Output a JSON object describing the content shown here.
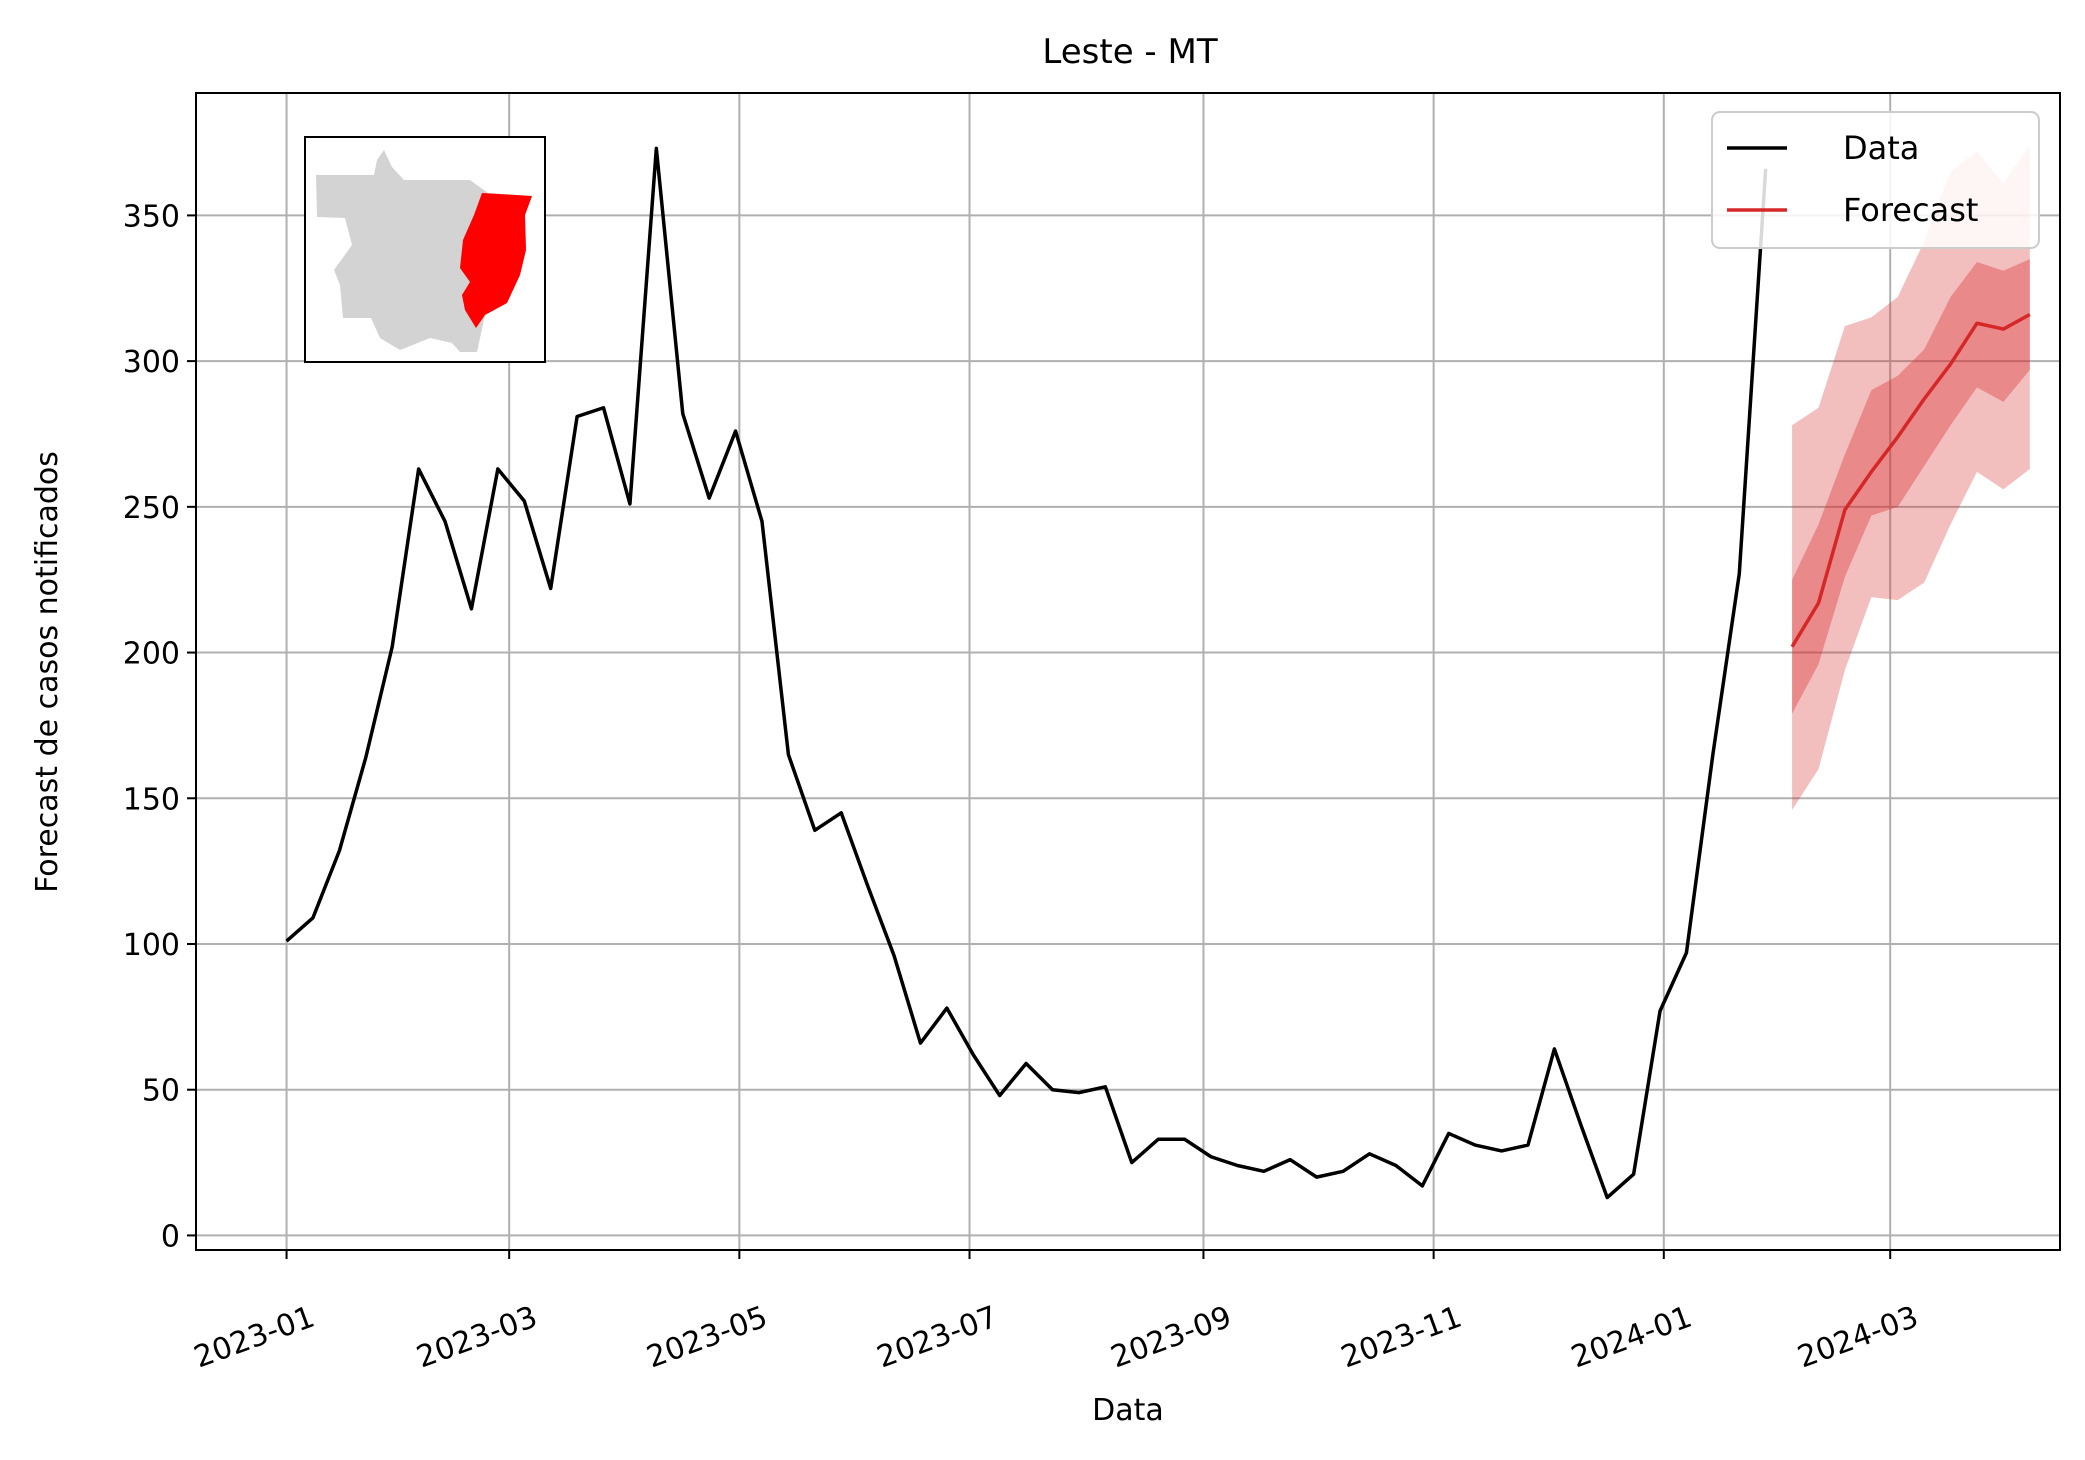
{
  "chart_data": {
    "type": "line",
    "title": "Leste - MT",
    "xlabel": "Data",
    "ylabel": "Forecast de casos notificados",
    "xlim": [
      "2022-12-08",
      "2024-04-15"
    ],
    "ylim": [
      -5,
      392
    ],
    "x_ticks": [
      "2023-01-01",
      "2023-03-01",
      "2023-05-01",
      "2023-07-01",
      "2023-09-01",
      "2023-11-01",
      "2024-01-01",
      "2024-03-01"
    ],
    "x_tick_labels": [
      "2023-01",
      "2023-03",
      "2023-05",
      "2023-07",
      "2023-09",
      "2023-11",
      "2024-01",
      "2024-03"
    ],
    "y_ticks": [
      0,
      50,
      100,
      150,
      200,
      250,
      300,
      350
    ],
    "grid": true,
    "legend_position": "top-right",
    "series": [
      {
        "name": "Data",
        "color": "#000000",
        "x": [
          "2023-01-01",
          "2023-01-08",
          "2023-01-15",
          "2023-01-22",
          "2023-01-29",
          "2023-02-05",
          "2023-02-12",
          "2023-02-19",
          "2023-02-26",
          "2023-03-05",
          "2023-03-12",
          "2023-03-19",
          "2023-03-26",
          "2023-04-02",
          "2023-04-09",
          "2023-04-16",
          "2023-04-23",
          "2023-04-30",
          "2023-05-07",
          "2023-05-14",
          "2023-05-21",
          "2023-05-28",
          "2023-06-04",
          "2023-06-11",
          "2023-06-18",
          "2023-06-25",
          "2023-07-02",
          "2023-07-09",
          "2023-07-16",
          "2023-07-23",
          "2023-07-30",
          "2023-08-06",
          "2023-08-13",
          "2023-08-20",
          "2023-08-27",
          "2023-09-03",
          "2023-09-10",
          "2023-09-17",
          "2023-09-24",
          "2023-10-01",
          "2023-10-08",
          "2023-10-15",
          "2023-10-22",
          "2023-10-29",
          "2023-11-05",
          "2023-11-12",
          "2023-11-19",
          "2023-11-26",
          "2023-12-03",
          "2023-12-10",
          "2023-12-17",
          "2023-12-24",
          "2023-12-31",
          "2024-01-07",
          "2024-01-14",
          "2024-01-21",
          "2024-01-28"
        ],
        "y": [
          101,
          109,
          132,
          164,
          202,
          263,
          245,
          215,
          263,
          252,
          222,
          281,
          284,
          251,
          373,
          282,
          253,
          276,
          245,
          165,
          139,
          145,
          120,
          96,
          66,
          78,
          62,
          48,
          59,
          50,
          49,
          51,
          25,
          33,
          33,
          27,
          24,
          22,
          26,
          20,
          22,
          28,
          24,
          17,
          35,
          31,
          29,
          31,
          64,
          38,
          13,
          21,
          77,
          97,
          165,
          227,
          366
        ]
      },
      {
        "name": "Forecast",
        "color": "#d62728",
        "x": [
          "2024-02-04",
          "2024-02-11",
          "2024-02-18",
          "2024-02-25",
          "2024-03-03",
          "2024-03-10",
          "2024-03-17",
          "2024-03-24",
          "2024-03-31",
          "2024-04-07"
        ],
        "y": [
          202,
          217,
          249,
          262,
          274,
          287,
          299,
          313,
          311,
          316
        ],
        "band_inner": {
          "lower": [
            179,
            196,
            226,
            247,
            250,
            264,
            278,
            291,
            286,
            297
          ],
          "upper": [
            225,
            244,
            268,
            290,
            295,
            304,
            322,
            334,
            331,
            335
          ]
        },
        "band_outer": {
          "lower": [
            146,
            160,
            194,
            219,
            218,
            224,
            244,
            262,
            256,
            263
          ],
          "upper": [
            278,
            284,
            312,
            315,
            322,
            341,
            365,
            372,
            361,
            374
          ]
        }
      }
    ],
    "inset_map": {
      "description_icon": "map-icon",
      "highlight_color": "#ff0000",
      "base_color": "#d3d3d3"
    }
  }
}
